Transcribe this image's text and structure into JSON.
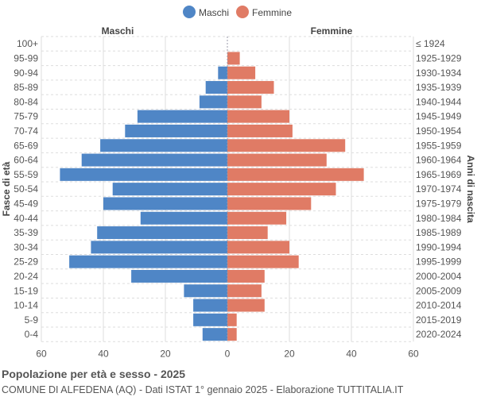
{
  "chart_data": {
    "type": "bar",
    "orientation": "horizontal-pyramid",
    "categories": [
      "100+",
      "95-99",
      "90-94",
      "85-89",
      "80-84",
      "75-79",
      "70-74",
      "65-69",
      "60-64",
      "55-59",
      "50-54",
      "45-49",
      "40-44",
      "35-39",
      "30-34",
      "25-29",
      "20-24",
      "15-19",
      "10-14",
      "5-9",
      "0-4"
    ],
    "birth_years": [
      "≤ 1924",
      "1925-1929",
      "1930-1934",
      "1935-1939",
      "1940-1944",
      "1945-1949",
      "1950-1954",
      "1955-1959",
      "1960-1964",
      "1965-1969",
      "1970-1974",
      "1975-1979",
      "1980-1984",
      "1985-1989",
      "1990-1994",
      "1995-1999",
      "2000-2004",
      "2005-2009",
      "2010-2014",
      "2015-2019",
      "2020-2024"
    ],
    "series": [
      {
        "name": "Maschi",
        "color": "#4f86c6",
        "values": [
          0,
          0,
          3,
          7,
          9,
          29,
          33,
          41,
          47,
          54,
          37,
          40,
          28,
          42,
          44,
          51,
          31,
          14,
          11,
          11,
          8
        ]
      },
      {
        "name": "Femmine",
        "color": "#e07b65",
        "values": [
          0,
          4,
          9,
          15,
          11,
          20,
          21,
          38,
          32,
          44,
          35,
          27,
          19,
          13,
          20,
          23,
          12,
          11,
          12,
          3,
          3
        ]
      }
    ],
    "xlim": [
      -60,
      60
    ],
    "xticks": [
      "60",
      "40",
      "20",
      "0",
      "20",
      "40",
      "60"
    ],
    "left_header": "Maschi",
    "right_header": "Femmine",
    "ylabel_left": "Fasce di età",
    "ylabel_right": "Anni di nascita",
    "legend_position": "top-center",
    "grid": true
  },
  "footer": {
    "title": "Popolazione per età e sesso - 2025",
    "subtitle": "COMUNE DI ALFEDENA (AQ) - Dati ISTAT 1° gennaio 2025 - Elaborazione TUTTITALIA.IT"
  }
}
